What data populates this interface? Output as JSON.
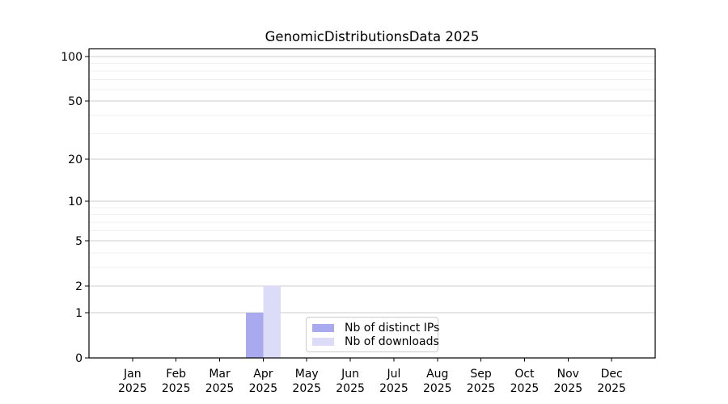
{
  "chart_data": {
    "type": "bar",
    "title": "GenomicDistributionsData 2025",
    "yscale": "log1p",
    "ylim": [
      0,
      112
    ],
    "grid": "horizontal",
    "legend_position": "lower center",
    "categories": [
      "Jan",
      "Feb",
      "Mar",
      "Apr",
      "May",
      "Jun",
      "Jul",
      "Aug",
      "Sep",
      "Oct",
      "Nov",
      "Dec"
    ],
    "category_year": "2025",
    "y_major_ticks": [
      100,
      50,
      20,
      10,
      5,
      2,
      1,
      0
    ],
    "y_minor_gridlines": [
      3,
      4,
      6,
      7,
      8,
      9,
      30,
      40,
      60,
      70,
      80,
      90
    ],
    "series": [
      {
        "name": "Nb of distinct IPs",
        "color": "#a9a9f0",
        "values": [
          0,
          0,
          0,
          1,
          0,
          0,
          0,
          0,
          0,
          0,
          0,
          0
        ]
      },
      {
        "name": "Nb of downloads",
        "color": "#dcdcf8",
        "values": [
          0,
          0,
          0,
          2,
          0,
          0,
          0,
          0,
          0,
          0,
          0,
          0
        ]
      }
    ],
    "colors": {
      "major_grid": "#cccccc",
      "minor_grid": "#f0f0f0",
      "axis": "#000000",
      "text": "#000000",
      "legend_border": "#cccccc",
      "legend_bg": "#ffffff",
      "background": "#ffffff"
    }
  }
}
